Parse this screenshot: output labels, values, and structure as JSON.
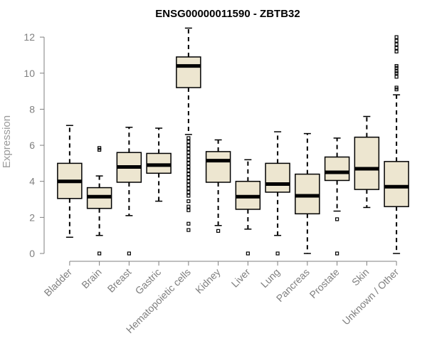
{
  "chart_data": {
    "type": "boxplot",
    "title": "ENSG00000011590 - ZBTB32",
    "xlabel": "",
    "ylabel": "Expression",
    "ylim": [
      0,
      12.4
    ],
    "yticks": [
      0,
      2,
      4,
      6,
      8,
      10,
      12
    ],
    "grid": false,
    "box_fill": "#ede6d0",
    "box_stroke": "#000000",
    "median_color": "#000000",
    "axis_color": "#7f7f7f",
    "categories": [
      "Bladder",
      "Brain",
      "Breast",
      "Gastric",
      "Hematopoietic cells",
      "Kidney",
      "Liver",
      "Lung",
      "Pancreas",
      "Prostate",
      "Skin",
      "Unknown / Other"
    ],
    "boxes": [
      {
        "name": "Bladder",
        "whisker_low": 0.9,
        "q1": 3.05,
        "median": 4.0,
        "q3": 5.0,
        "whisker_high": 7.1,
        "outliers": []
      },
      {
        "name": "Brain",
        "whisker_low": 1.0,
        "q1": 2.5,
        "median": 3.15,
        "q3": 3.65,
        "whisker_high": 4.3,
        "outliers": [
          0.0,
          5.75,
          5.85
        ]
      },
      {
        "name": "Breast",
        "whisker_low": 2.1,
        "q1": 3.95,
        "median": 4.8,
        "q3": 5.6,
        "whisker_high": 7.0,
        "outliers": [
          0.0
        ]
      },
      {
        "name": "Gastric",
        "whisker_low": 2.9,
        "q1": 4.45,
        "median": 4.9,
        "q3": 5.55,
        "whisker_high": 6.95,
        "outliers": []
      },
      {
        "name": "Hematopoietic cells",
        "whisker_low": 6.6,
        "q1": 9.2,
        "median": 10.4,
        "q3": 10.9,
        "whisker_high": 12.5,
        "outliers": [
          1.3,
          1.65,
          2.4,
          2.6,
          2.9,
          3.2,
          3.4,
          3.6,
          3.8,
          4.0,
          4.2,
          4.4,
          4.6,
          4.8,
          5.0,
          5.2,
          5.4,
          5.6,
          5.8,
          6.0,
          6.2,
          6.4
        ]
      },
      {
        "name": "Kidney",
        "whisker_low": 1.55,
        "q1": 3.95,
        "median": 5.15,
        "q3": 5.65,
        "whisker_high": 6.3,
        "outliers": [
          1.25
        ]
      },
      {
        "name": "Liver",
        "whisker_low": 1.35,
        "q1": 2.45,
        "median": 3.15,
        "q3": 4.0,
        "whisker_high": 5.2,
        "outliers": [
          0.0
        ]
      },
      {
        "name": "Lung",
        "whisker_low": 1.0,
        "q1": 3.4,
        "median": 3.85,
        "q3": 5.0,
        "whisker_high": 6.75,
        "outliers": [
          0.0
        ]
      },
      {
        "name": "Pancreas",
        "whisker_low": 0.0,
        "q1": 2.2,
        "median": 3.2,
        "q3": 4.4,
        "whisker_high": 6.65,
        "outliers": []
      },
      {
        "name": "Prostate",
        "whisker_low": 2.35,
        "q1": 4.05,
        "median": 4.5,
        "q3": 5.35,
        "whisker_high": 6.4,
        "outliers": [
          0.0,
          1.9
        ]
      },
      {
        "name": "Skin",
        "whisker_low": 2.55,
        "q1": 3.55,
        "median": 4.7,
        "q3": 6.45,
        "whisker_high": 7.6,
        "outliers": []
      },
      {
        "name": "Unknown / Other",
        "whisker_low": 0.0,
        "q1": 2.6,
        "median": 3.7,
        "q3": 5.1,
        "whisker_high": 8.8,
        "outliers": [
          9.1,
          9.2,
          9.8,
          10.0,
          10.1,
          10.3,
          10.4,
          11.2,
          11.4,
          11.6,
          11.8,
          12.0
        ]
      }
    ]
  }
}
